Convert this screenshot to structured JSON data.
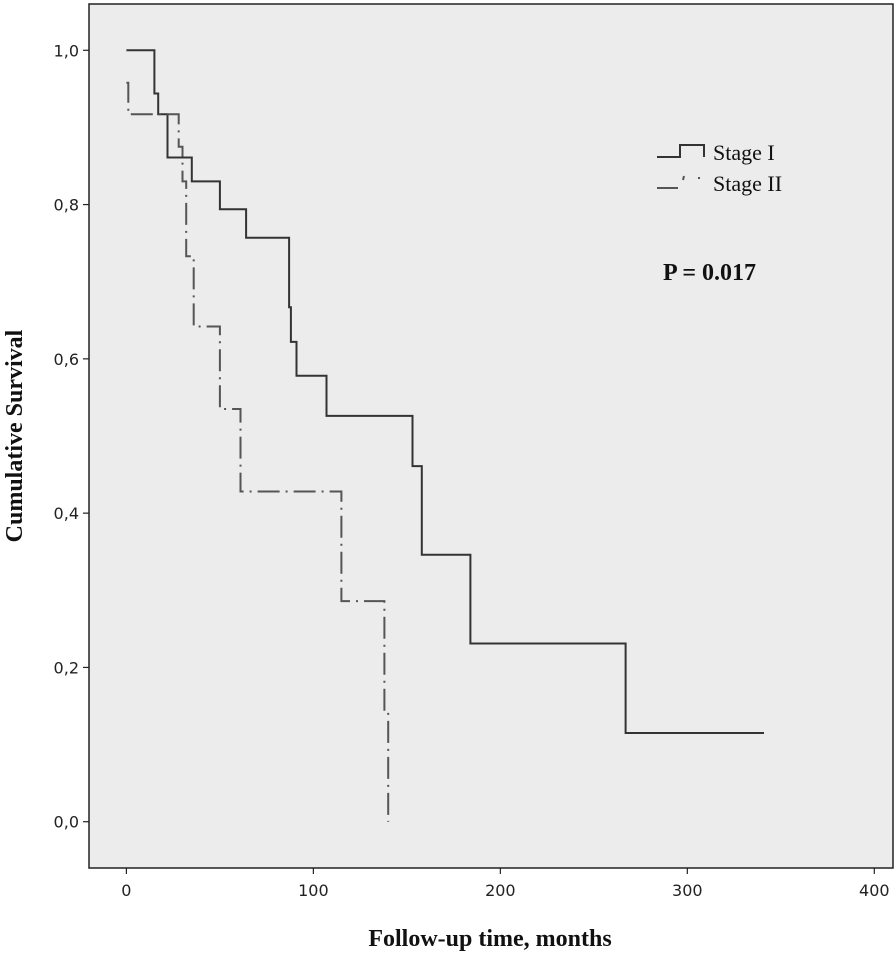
{
  "chart_data": {
    "type": "line",
    "title": "",
    "xlabel": "Follow-up time, months",
    "ylabel": "Cumulative Survival",
    "xlim": [
      -20,
      410
    ],
    "ylim": [
      -0.06,
      1.06
    ],
    "x_ticks": [
      0,
      100,
      200,
      300,
      400
    ],
    "x_tick_labels": [
      "0",
      "100",
      "200",
      "300",
      "400"
    ],
    "y_ticks": [
      0.0,
      0.2,
      0.4,
      0.6,
      0.8,
      1.0
    ],
    "y_tick_labels": [
      "0,0",
      "0,2",
      "0,4",
      "0,6",
      "0,8",
      "1,0"
    ],
    "grid": false,
    "legend_position": "top-right",
    "annotation": "P = 0.017",
    "series": [
      {
        "name": "Stage I",
        "line_style": "solid",
        "color": "#333333",
        "steps": [
          [
            0,
            1.0
          ],
          [
            15,
            0.944
          ],
          [
            17,
            0.917
          ],
          [
            22,
            0.861
          ],
          [
            29,
            0.861
          ],
          [
            35,
            0.83
          ],
          [
            50,
            0.794
          ],
          [
            64,
            0.757
          ],
          [
            87,
            0.667
          ],
          [
            88,
            0.622
          ],
          [
            91,
            0.578
          ],
          [
            107,
            0.526
          ],
          [
            153,
            0.461
          ],
          [
            158,
            0.346
          ],
          [
            184,
            0.231
          ],
          [
            267,
            0.115
          ],
          [
            341,
            0.115
          ]
        ]
      },
      {
        "name": "Stage II",
        "line_style": "dashdot",
        "color": "#555555",
        "steps": [
          [
            0,
            0.958
          ],
          [
            1,
            0.917
          ],
          [
            28,
            0.875
          ],
          [
            30,
            0.83
          ],
          [
            32,
            0.825
          ],
          [
            32,
            0.733
          ],
          [
            36,
            0.642
          ],
          [
            50,
            0.535
          ],
          [
            61,
            0.428
          ],
          [
            115,
            0.286
          ],
          [
            138,
            0.143
          ],
          [
            140,
            0.0
          ]
        ]
      }
    ]
  }
}
